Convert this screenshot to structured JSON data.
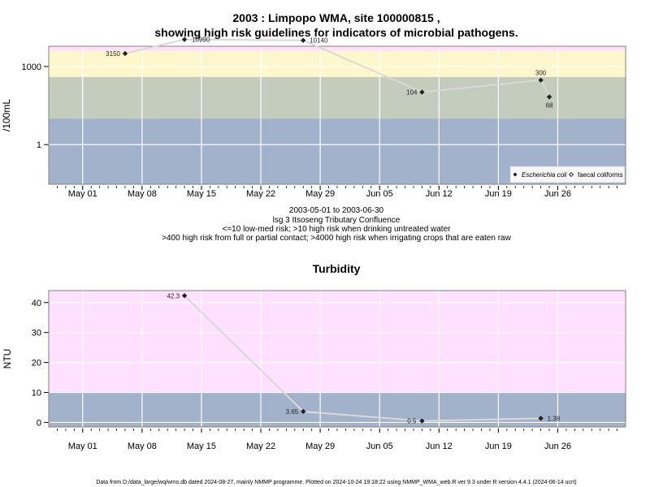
{
  "header": {
    "title_line1": "2003 : Limpopo WMA, site 100000815 ,",
    "title_line2": "showing high risk guidelines for indicators of microbial pathogens."
  },
  "subtitle": {
    "date_range": "2003-05-01 to 2003-06-30",
    "site_name": "lsg 3 Itsoseng Tributary Confluence",
    "note1": "<=10 low-med risk; >10 high risk when drinking untreated water",
    "note2": ">400 high risk from full or partial contact; >4000 high risk when irrigating crops that are eaten raw"
  },
  "footer": "Data from D:/data_large/wq/wms.db dated 2024-08-27, mainly NMMP programme. Plotted on 2024-10-24 19:18:22 using NMMP_WMA_web.R ver 9.3 under R version 4.4.1 (2024-06-14 ucrt)",
  "colors": {
    "band_pink": "#FFE0FF",
    "band_yellow": "#FFF7CC",
    "band_green": "#C4CCBE",
    "band_blue": "#A2B2CA",
    "line": "#D9D9D9",
    "marker": "#222222",
    "frame": "#808080"
  },
  "chart_data": [
    {
      "type": "line",
      "ylabel": "/100mL",
      "y_scale": "log",
      "ylim": [
        0.03,
        6000
      ],
      "y_ticks": [
        {
          "value": 1,
          "label": "1"
        },
        {
          "value": 1000,
          "label": "1000"
        }
      ],
      "bands": [
        {
          "from": 0.03,
          "to": 10,
          "color": "band_blue"
        },
        {
          "from": 10,
          "to": 400,
          "color": "band_green"
        },
        {
          "from": 400,
          "to": 4000,
          "color": "band_yellow"
        },
        {
          "from": 4000,
          "to": 6000,
          "color": "band_pink"
        }
      ],
      "x_ticks": [
        "May 01",
        "May 08",
        "May 15",
        "May 22",
        "May 29",
        "Jun 05",
        "Jun 12",
        "Jun 19",
        "Jun 26"
      ],
      "legend": {
        "position": "bottom-right",
        "entries": [
          "Escherichia coli",
          "faecal coliforms"
        ]
      },
      "series": [
        {
          "name": "Escherichia coli",
          "points": [
            {
              "date": "2003-05-06",
              "y": 3150,
              "label": "3150"
            },
            {
              "date": "2003-05-13",
              "y": 10990,
              "label": "10990"
            },
            {
              "date": "2003-05-27",
              "y": 10140,
              "label": "10140"
            },
            {
              "date": "2003-06-10",
              "y": 104,
              "label": "104"
            },
            {
              "date": "2003-06-24",
              "y": 300,
              "label": "300"
            },
            {
              "date": "2003-06-25",
              "y": 68,
              "label": "68"
            }
          ]
        }
      ]
    },
    {
      "type": "line",
      "title": "Turbidity",
      "ylabel": "NTU",
      "ylim": [
        -1.5,
        44
      ],
      "y_ticks": [
        {
          "value": 0,
          "label": "0"
        },
        {
          "value": 10,
          "label": "10"
        },
        {
          "value": 20,
          "label": "20"
        },
        {
          "value": 30,
          "label": "30"
        },
        {
          "value": 40,
          "label": "40"
        }
      ],
      "bands": [
        {
          "from": -1.5,
          "to": 10,
          "color": "band_blue"
        },
        {
          "from": 10,
          "to": 44,
          "color": "band_pink"
        }
      ],
      "x_ticks": [
        "May 01",
        "May 08",
        "May 15",
        "May 22",
        "May 29",
        "Jun 05",
        "Jun 12",
        "Jun 19",
        "Jun 26"
      ],
      "series": [
        {
          "points": [
            {
              "date": "2003-05-13",
              "y": 42.3,
              "label": "42.3"
            },
            {
              "date": "2003-05-27",
              "y": 3.65,
              "label": "3.65"
            },
            {
              "date": "2003-06-10",
              "y": 0.5,
              "label": "0.5"
            },
            {
              "date": "2003-06-24",
              "y": 1.38,
              "label": "1.38"
            }
          ]
        }
      ]
    }
  ]
}
